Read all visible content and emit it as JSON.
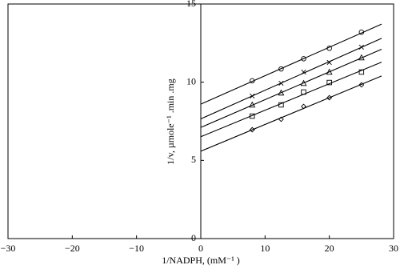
{
  "chart_data": {
    "type": "scatter",
    "x_label": "1/NADPH, (mM⁻¹ )",
    "y_label": "1/v, µmole⁻¹ .min .mg",
    "x": [
      8,
      12.5,
      16,
      20,
      25
    ],
    "series": [
      {
        "marker": "circle",
        "color": "#000000",
        "values": [
          10.09,
          10.85,
          11.5,
          12.17,
          13.2
        ]
      },
      {
        "marker": "cross",
        "color": "#000000",
        "values": [
          9.11,
          9.93,
          10.65,
          11.26,
          12.24
        ]
      },
      {
        "marker": "triangle",
        "color": "#000000",
        "values": [
          8.55,
          9.32,
          9.93,
          10.65,
          11.57
        ]
      },
      {
        "marker": "square",
        "color": "#000000",
        "values": [
          7.83,
          8.55,
          9.37,
          9.98,
          10.65
        ]
      },
      {
        "marker": "diamond",
        "color": "#000000",
        "values": [
          6.96,
          7.63,
          8.45,
          9.01,
          9.83
        ]
      }
    ],
    "fit_lines": true,
    "xlim": [
      -30,
      30
    ],
    "xticks": [
      {
        "value": -30,
        "label": "−30"
      },
      {
        "value": -20,
        "label": "−20"
      },
      {
        "value": -10,
        "label": "−10"
      },
      0,
      10,
      20,
      30
    ],
    "ylim": [
      0,
      15
    ],
    "yticks": [
      0,
      5,
      10,
      15
    ]
  }
}
